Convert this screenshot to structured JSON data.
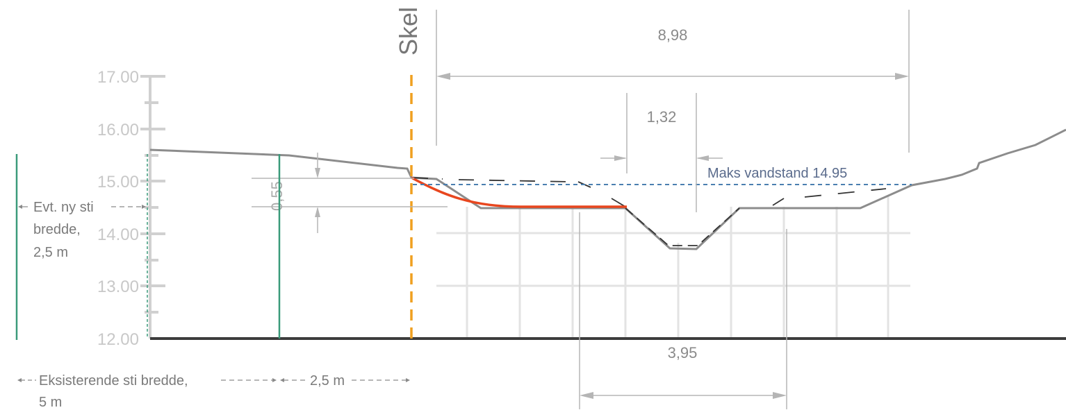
{
  "diagram": {
    "skel_label": "Skel",
    "y_axis_ticks": [
      "17.00",
      "16.00",
      "15.00",
      "14.00",
      "13.00",
      "12.00"
    ],
    "dimensions": {
      "total_width": "8,98",
      "channel_top": "1,32",
      "bottom_width": "3,95",
      "height_diff": "0,55"
    },
    "water_level_label": "Maks vandstand 14.95",
    "new_path": {
      "line1": "Evt. ny sti",
      "line2": "bredde,",
      "line3": "2,5 m"
    },
    "existing_path": {
      "part1": "Eksisterende sti bredde,",
      "part2": "2,5 m",
      "part3": "5 m"
    },
    "colors": {
      "terrain": "#8c8c8c",
      "new_profile": "#e8461e",
      "property_line": "#f0a020",
      "water_line": "#4a7fb0",
      "path_marker": "#3a9a7a",
      "grid": "#e0e0e0"
    }
  }
}
